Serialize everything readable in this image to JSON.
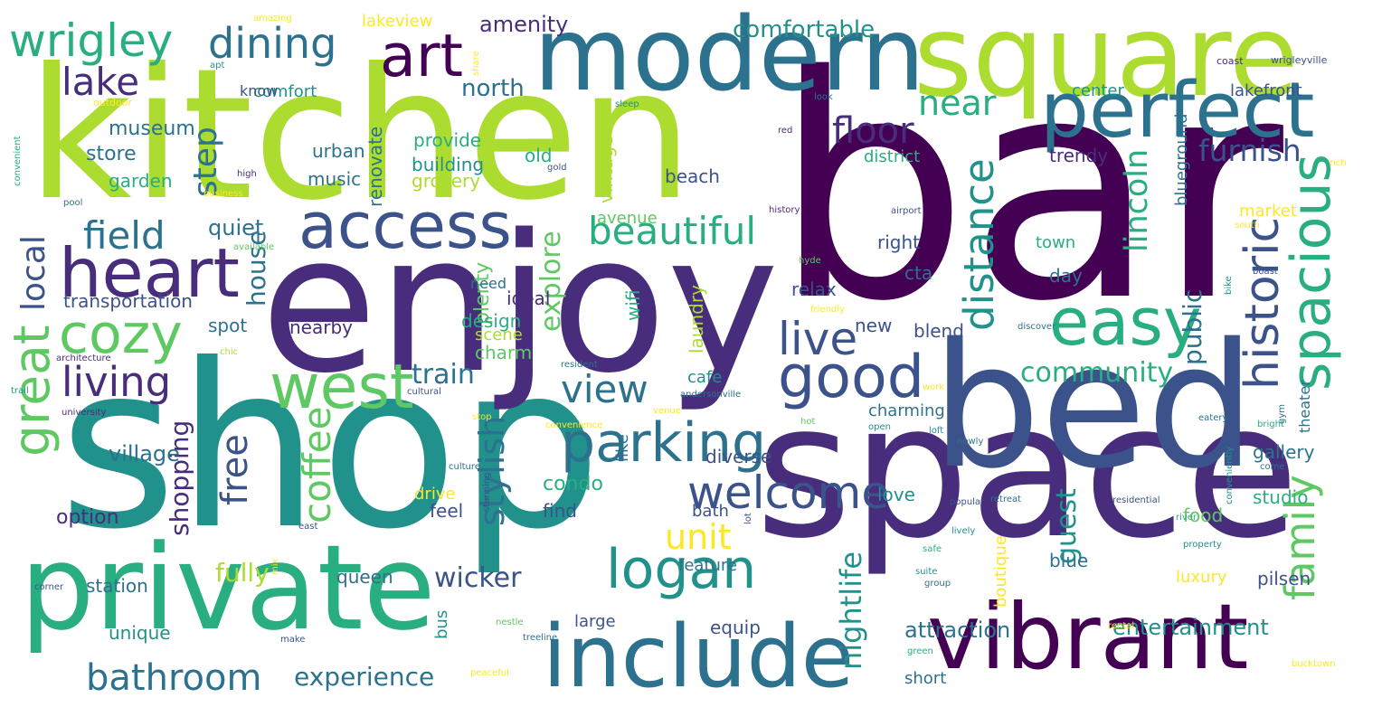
{
  "palette": {
    "d1": "#440154",
    "d2": "#472d7b",
    "d3": "#3b528b",
    "d4": "#2c728e",
    "d5": "#21918c",
    "d6": "#28ae80",
    "d7": "#5ec962",
    "d8": "#addc30",
    "d9": "#fde725"
  },
  "words": [
    {
      "text": "bar",
      "c": "d1"
    },
    {
      "text": "kitchen",
      "c": "d8"
    },
    {
      "text": "shop",
      "c": "d5"
    },
    {
      "text": "enjoy",
      "c": "d2"
    },
    {
      "text": "space",
      "c": "d2"
    },
    {
      "text": "bed",
      "c": "d3"
    },
    {
      "text": "square",
      "c": "d8"
    },
    {
      "text": "modern",
      "c": "d4"
    },
    {
      "text": "private",
      "c": "d6"
    },
    {
      "text": "vibrant",
      "c": "d1"
    },
    {
      "text": "include",
      "c": "d4"
    },
    {
      "text": "perfect",
      "c": "d4"
    },
    {
      "text": "access",
      "c": "d3"
    },
    {
      "text": "heart",
      "c": "d2"
    },
    {
      "text": "art",
      "c": "d1"
    },
    {
      "text": "west",
      "c": "d7"
    },
    {
      "text": "easy",
      "c": "d6"
    },
    {
      "text": "spacious",
      "c": "d6"
    },
    {
      "text": "parking",
      "c": "d4"
    },
    {
      "text": "good",
      "c": "d3"
    },
    {
      "text": "logan",
      "c": "d5"
    },
    {
      "text": "cozy",
      "c": "d7"
    },
    {
      "text": "great",
      "c": "d7"
    },
    {
      "text": "beautiful",
      "c": "d6"
    },
    {
      "text": "welcome",
      "c": "d3"
    },
    {
      "text": "live",
      "c": "d3"
    },
    {
      "text": "historic",
      "c": "d3"
    },
    {
      "text": "distance",
      "c": "d5"
    },
    {
      "text": "living",
      "c": "d2"
    },
    {
      "text": "dining",
      "c": "d4"
    },
    {
      "text": "wrigley",
      "c": "d6"
    },
    {
      "text": "lake",
      "c": "d2"
    },
    {
      "text": "floor",
      "c": "d2"
    },
    {
      "text": "bathroom",
      "c": "d4"
    },
    {
      "text": "field",
      "c": "d4"
    },
    {
      "text": "lincoln",
      "c": "d6"
    },
    {
      "text": "near",
      "c": "d6"
    },
    {
      "text": "coffee",
      "c": "d7"
    },
    {
      "text": "family",
      "c": "d7"
    },
    {
      "text": "free",
      "c": "d3"
    },
    {
      "text": "view",
      "c": "d4"
    },
    {
      "text": "experience",
      "c": "d4"
    },
    {
      "text": "local",
      "c": "d3"
    },
    {
      "text": "step",
      "c": "d4"
    },
    {
      "text": "unit",
      "c": "d9"
    },
    {
      "text": "stylish",
      "c": "d4"
    },
    {
      "text": "community",
      "c": "d6"
    },
    {
      "text": "furnish",
      "c": "d3"
    },
    {
      "text": "house",
      "c": "d4"
    },
    {
      "text": "shopping",
      "c": "d2"
    },
    {
      "text": "train",
      "c": "d4"
    },
    {
      "text": "wicker",
      "c": "d3"
    },
    {
      "text": "comfortable",
      "c": "d5"
    },
    {
      "text": "north",
      "c": "d4"
    },
    {
      "text": "explore",
      "c": "d7"
    },
    {
      "text": "guest",
      "c": "d5"
    },
    {
      "text": "public",
      "c": "d4"
    },
    {
      "text": "nightlife",
      "c": "d5"
    },
    {
      "text": "fully",
      "c": "d8"
    },
    {
      "text": "attraction",
      "c": "d4"
    },
    {
      "text": "entertainment",
      "c": "d5"
    },
    {
      "text": "condo",
      "c": "d6"
    },
    {
      "text": "quiet",
      "c": "d4"
    },
    {
      "text": "amenity",
      "c": "d2"
    },
    {
      "text": "transportation",
      "c": "d3"
    },
    {
      "text": "store",
      "c": "d4"
    },
    {
      "text": "museum",
      "c": "d4"
    },
    {
      "text": "garden",
      "c": "d6"
    },
    {
      "text": "village",
      "c": "d4"
    },
    {
      "text": "option",
      "c": "d2"
    },
    {
      "text": "station",
      "c": "d4"
    },
    {
      "text": "unique",
      "c": "d5"
    },
    {
      "text": "spot",
      "c": "d4"
    },
    {
      "text": "nearby",
      "c": "d2"
    },
    {
      "text": "music",
      "c": "d4"
    },
    {
      "text": "urban",
      "c": "d4"
    },
    {
      "text": "provide",
      "c": "d6"
    },
    {
      "text": "building",
      "c": "d5"
    },
    {
      "text": "grocery",
      "c": "d8"
    },
    {
      "text": "renovate",
      "c": "d4"
    },
    {
      "text": "old",
      "c": "d6"
    },
    {
      "text": "vintage",
      "c": "d8"
    },
    {
      "text": "avenue",
      "c": "d7"
    },
    {
      "text": "plenty",
      "c": "d7"
    },
    {
      "text": "ideal",
      "c": "d2"
    },
    {
      "text": "need",
      "c": "d4"
    },
    {
      "text": "design",
      "c": "d6"
    },
    {
      "text": "scene",
      "c": "d8"
    },
    {
      "text": "charm",
      "c": "d7"
    },
    {
      "text": "wifi",
      "c": "d6"
    },
    {
      "text": "laundry",
      "c": "d8"
    },
    {
      "text": "relax",
      "c": "d3"
    },
    {
      "text": "new",
      "c": "d3"
    },
    {
      "text": "right",
      "c": "d3"
    },
    {
      "text": "cta",
      "c": "d4"
    },
    {
      "text": "blend",
      "c": "d3"
    },
    {
      "text": "charming",
      "c": "d4"
    },
    {
      "text": "cafe",
      "c": "d5"
    },
    {
      "text": "diverse",
      "c": "d3"
    },
    {
      "text": "beach",
      "c": "d3"
    },
    {
      "text": "district",
      "c": "d6"
    },
    {
      "text": "trendy",
      "c": "d2"
    },
    {
      "text": "center",
      "c": "d5"
    },
    {
      "text": "lakefront",
      "c": "d3"
    },
    {
      "text": "blueground",
      "c": "d4"
    },
    {
      "text": "town",
      "c": "d6"
    },
    {
      "text": "market",
      "c": "d9"
    },
    {
      "text": "day",
      "c": "d4"
    },
    {
      "text": "theater",
      "c": "d4"
    },
    {
      "text": "gallery",
      "c": "d4"
    },
    {
      "text": "studio",
      "c": "d6"
    },
    {
      "text": "food",
      "c": "d7"
    },
    {
      "text": "love",
      "c": "d5"
    },
    {
      "text": "drive",
      "c": "d9"
    },
    {
      "text": "feel",
      "c": "d3"
    },
    {
      "text": "find",
      "c": "d3"
    },
    {
      "text": "like",
      "c": "d4"
    },
    {
      "text": "bath",
      "c": "d3"
    },
    {
      "text": "queen",
      "c": "d4"
    },
    {
      "text": "feature",
      "c": "d4"
    },
    {
      "text": "large",
      "c": "d3"
    },
    {
      "text": "equip",
      "c": "d3"
    },
    {
      "text": "blue",
      "c": "d4"
    },
    {
      "text": "luxury",
      "c": "d9"
    },
    {
      "text": "pilsen",
      "c": "d3"
    },
    {
      "text": "boutique",
      "c": "d9"
    },
    {
      "text": "short",
      "c": "d4"
    },
    {
      "text": "comfort",
      "c": "d5"
    },
    {
      "text": "lakeview",
      "c": "d9"
    },
    {
      "text": "know",
      "c": "d3"
    },
    {
      "text": "bus",
      "c": "d5"
    },
    {
      "text": "coast",
      "c": "d2"
    },
    {
      "text": "wrigleyville",
      "c": "d3"
    },
    {
      "text": "amazing",
      "c": "d9"
    },
    {
      "text": "apt",
      "c": "d5"
    },
    {
      "text": "share",
      "c": "d9"
    },
    {
      "text": "outdoor",
      "c": "d9"
    },
    {
      "text": "sleep",
      "c": "d5"
    },
    {
      "text": "look",
      "c": "d4"
    },
    {
      "text": "red",
      "c": "d2"
    },
    {
      "text": "gold",
      "c": "d3"
    },
    {
      "text": "high",
      "c": "d2"
    },
    {
      "text": "business",
      "c": "d9"
    },
    {
      "text": "convenient",
      "c": "d6"
    },
    {
      "text": "pool",
      "c": "d4"
    },
    {
      "text": "history",
      "c": "d2"
    },
    {
      "text": "airport",
      "c": "d3"
    },
    {
      "text": "rich",
      "c": "d9"
    },
    {
      "text": "south",
      "c": "d9"
    },
    {
      "text": "available",
      "c": "d7"
    },
    {
      "text": "hyde",
      "c": "d7"
    },
    {
      "text": "boast",
      "c": "d3"
    },
    {
      "text": "friendly",
      "c": "d9"
    },
    {
      "text": "bike",
      "c": "d5"
    },
    {
      "text": "chic",
      "c": "d8"
    },
    {
      "text": "architecture",
      "c": "d2"
    },
    {
      "text": "resident",
      "c": "d4"
    },
    {
      "text": "discover",
      "c": "d4"
    },
    {
      "text": "work",
      "c": "d9"
    },
    {
      "text": "trail",
      "c": "d5"
    },
    {
      "text": "cultural",
      "c": "d3"
    },
    {
      "text": "university",
      "c": "d2"
    },
    {
      "text": "andersonville",
      "c": "d4"
    },
    {
      "text": "venue",
      "c": "d9"
    },
    {
      "text": "stop",
      "c": "d9"
    },
    {
      "text": "convenience",
      "c": "d9"
    },
    {
      "text": "hot",
      "c": "d7"
    },
    {
      "text": "open",
      "c": "d5"
    },
    {
      "text": "loft",
      "c": "d5"
    },
    {
      "text": "eatery",
      "c": "d4"
    },
    {
      "text": "gym",
      "c": "d4"
    },
    {
      "text": "newly",
      "c": "d4"
    },
    {
      "text": "culture",
      "c": "d4"
    },
    {
      "text": "popular",
      "c": "d3"
    },
    {
      "text": "retreat",
      "c": "d4"
    },
    {
      "text": "residential",
      "c": "d3"
    },
    {
      "text": "conveniently",
      "c": "d5"
    },
    {
      "text": "bright",
      "c": "d6"
    },
    {
      "text": "come",
      "c": "d4"
    },
    {
      "text": "stunning",
      "c": "d3"
    },
    {
      "text": "east",
      "c": "d3"
    },
    {
      "text": "lot",
      "c": "d3"
    },
    {
      "text": "lively",
      "c": "d5"
    },
    {
      "text": "river",
      "c": "d6"
    },
    {
      "text": "property",
      "c": "d5"
    },
    {
      "text": "safe",
      "c": "d6"
    },
    {
      "text": "corner",
      "c": "d3"
    },
    {
      "text": "mix",
      "c": "d9"
    },
    {
      "text": "suite",
      "c": "d5"
    },
    {
      "text": "group",
      "c": "d4"
    },
    {
      "text": "nestle",
      "c": "d7"
    },
    {
      "text": "treeline",
      "c": "d4"
    },
    {
      "text": "rental",
      "c": "d9"
    },
    {
      "text": "make",
      "c": "d3"
    },
    {
      "text": "green",
      "c": "d6"
    },
    {
      "text": "peaceful",
      "c": "d9"
    },
    {
      "text": "bucktown",
      "c": "d9"
    }
  ]
}
